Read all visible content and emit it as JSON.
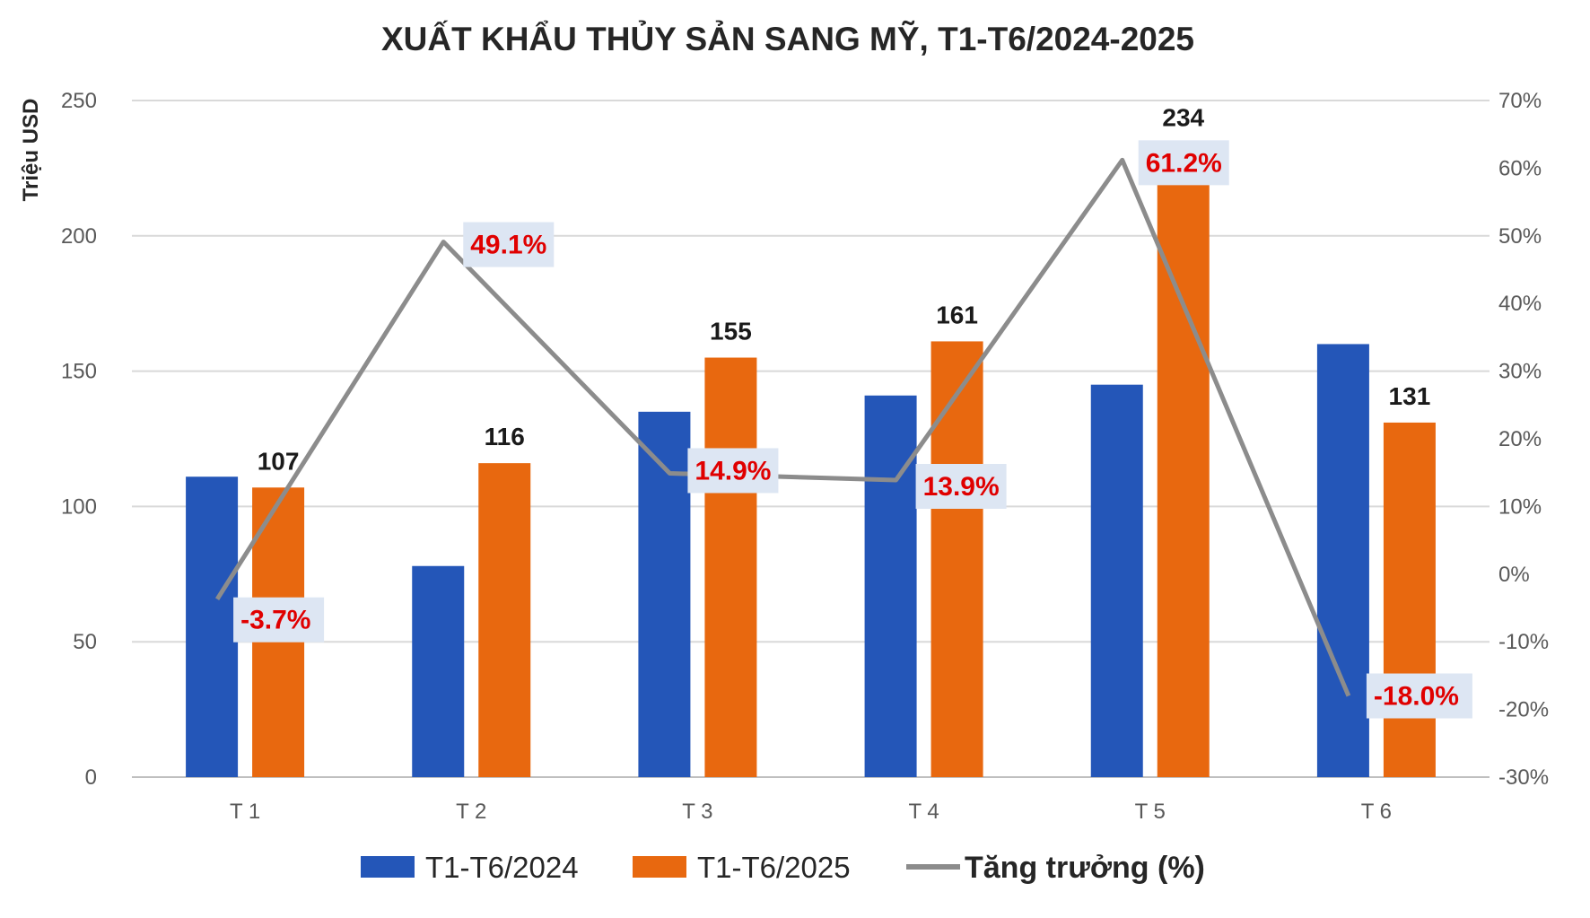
{
  "chart_data": {
    "type": "bar",
    "title": "XUẤT KHẨU THỦY SẢN SANG MỸ, T1-T6/2024-2025",
    "ylabel": "Triệu USD",
    "categories": [
      "T 1",
      "T 2",
      "T 3",
      "T 4",
      "T 5",
      "T 6"
    ],
    "ylim": [
      0,
      250
    ],
    "yticks": [
      "0",
      "50",
      "100",
      "150",
      "200",
      "250"
    ],
    "y2lim": [
      -30,
      70
    ],
    "y2ticks": [
      "-30%",
      "-20%",
      "-10%",
      "0%",
      "10%",
      "20%",
      "30%",
      "40%",
      "50%",
      "60%",
      "70%"
    ],
    "series": [
      {
        "name": "T1-T6/2024",
        "kind": "bar",
        "axis": "left",
        "color": "#2456b8",
        "values": [
          111,
          78,
          135,
          141,
          145,
          160
        ]
      },
      {
        "name": "T1-T6/2025",
        "kind": "bar",
        "axis": "left",
        "color": "#e8680f",
        "values": [
          107,
          116,
          155,
          161,
          234,
          131
        ],
        "labels": [
          "107",
          "116",
          "155",
          "161",
          "234",
          "131"
        ]
      },
      {
        "name": "Tăng trưởng (%)",
        "kind": "line",
        "axis": "right",
        "color": "#8c8c8c",
        "values": [
          -3.7,
          49.1,
          14.9,
          13.9,
          61.2,
          -18.0
        ],
        "labels": [
          "-3.7%",
          "49.1%",
          "14.9%",
          "13.9%",
          "61.2%",
          "-18.0%"
        ]
      }
    ],
    "legend": {
      "position": "bottom"
    },
    "grid": true,
    "colors": {
      "label_box": "#dde6f3",
      "label_text": "#e00000",
      "gridline": "#d9d9d9"
    }
  }
}
